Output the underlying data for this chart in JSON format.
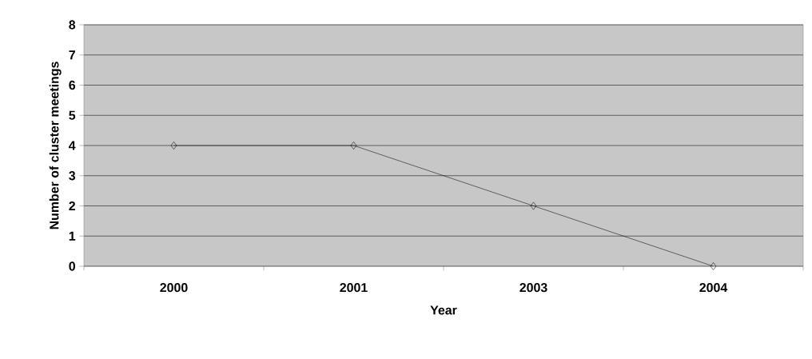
{
  "chart_data": {
    "type": "line",
    "xlabel": "Year",
    "ylabel": "Number of cluster meetings",
    "categories": [
      "2000",
      "2001",
      "2003",
      "2004"
    ],
    "series": [
      {
        "color": "#000000",
        "values": [
          4,
          4,
          2,
          0
        ]
      }
    ],
    "ylim": [
      0,
      8
    ],
    "yticks": [
      0,
      1,
      2,
      3,
      4,
      5,
      6,
      7,
      8
    ],
    "grid": "y",
    "marker": "diamond",
    "line_style": "solid"
  }
}
